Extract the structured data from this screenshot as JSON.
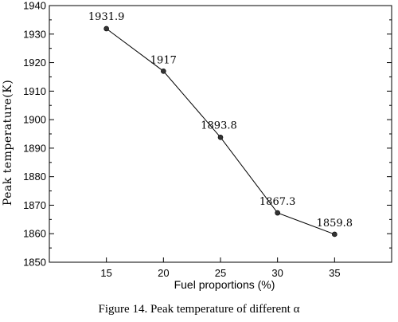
{
  "chart_data": {
    "type": "line",
    "x": [
      15,
      20,
      25,
      30,
      35
    ],
    "values": [
      1931.9,
      1917,
      1893.8,
      1867.3,
      1859.8
    ],
    "data_labels": [
      "1931.9",
      "1917",
      "1893.8",
      "1867.3",
      "1859.8"
    ],
    "xlabel": "Fuel proportions (%)",
    "ylabel": "Peak temperature(K)",
    "xlim": [
      10,
      40
    ],
    "ylim": [
      1850,
      1940
    ],
    "xticks": [
      15,
      20,
      25,
      30,
      35
    ],
    "yticks": [
      1850,
      1860,
      1870,
      1880,
      1890,
      1900,
      1910,
      1920,
      1930,
      1940
    ],
    "grid": false,
    "line_color": "#000000",
    "marker_color": "#333333"
  },
  "caption": "Figure 14. Peak temperature of different  α"
}
